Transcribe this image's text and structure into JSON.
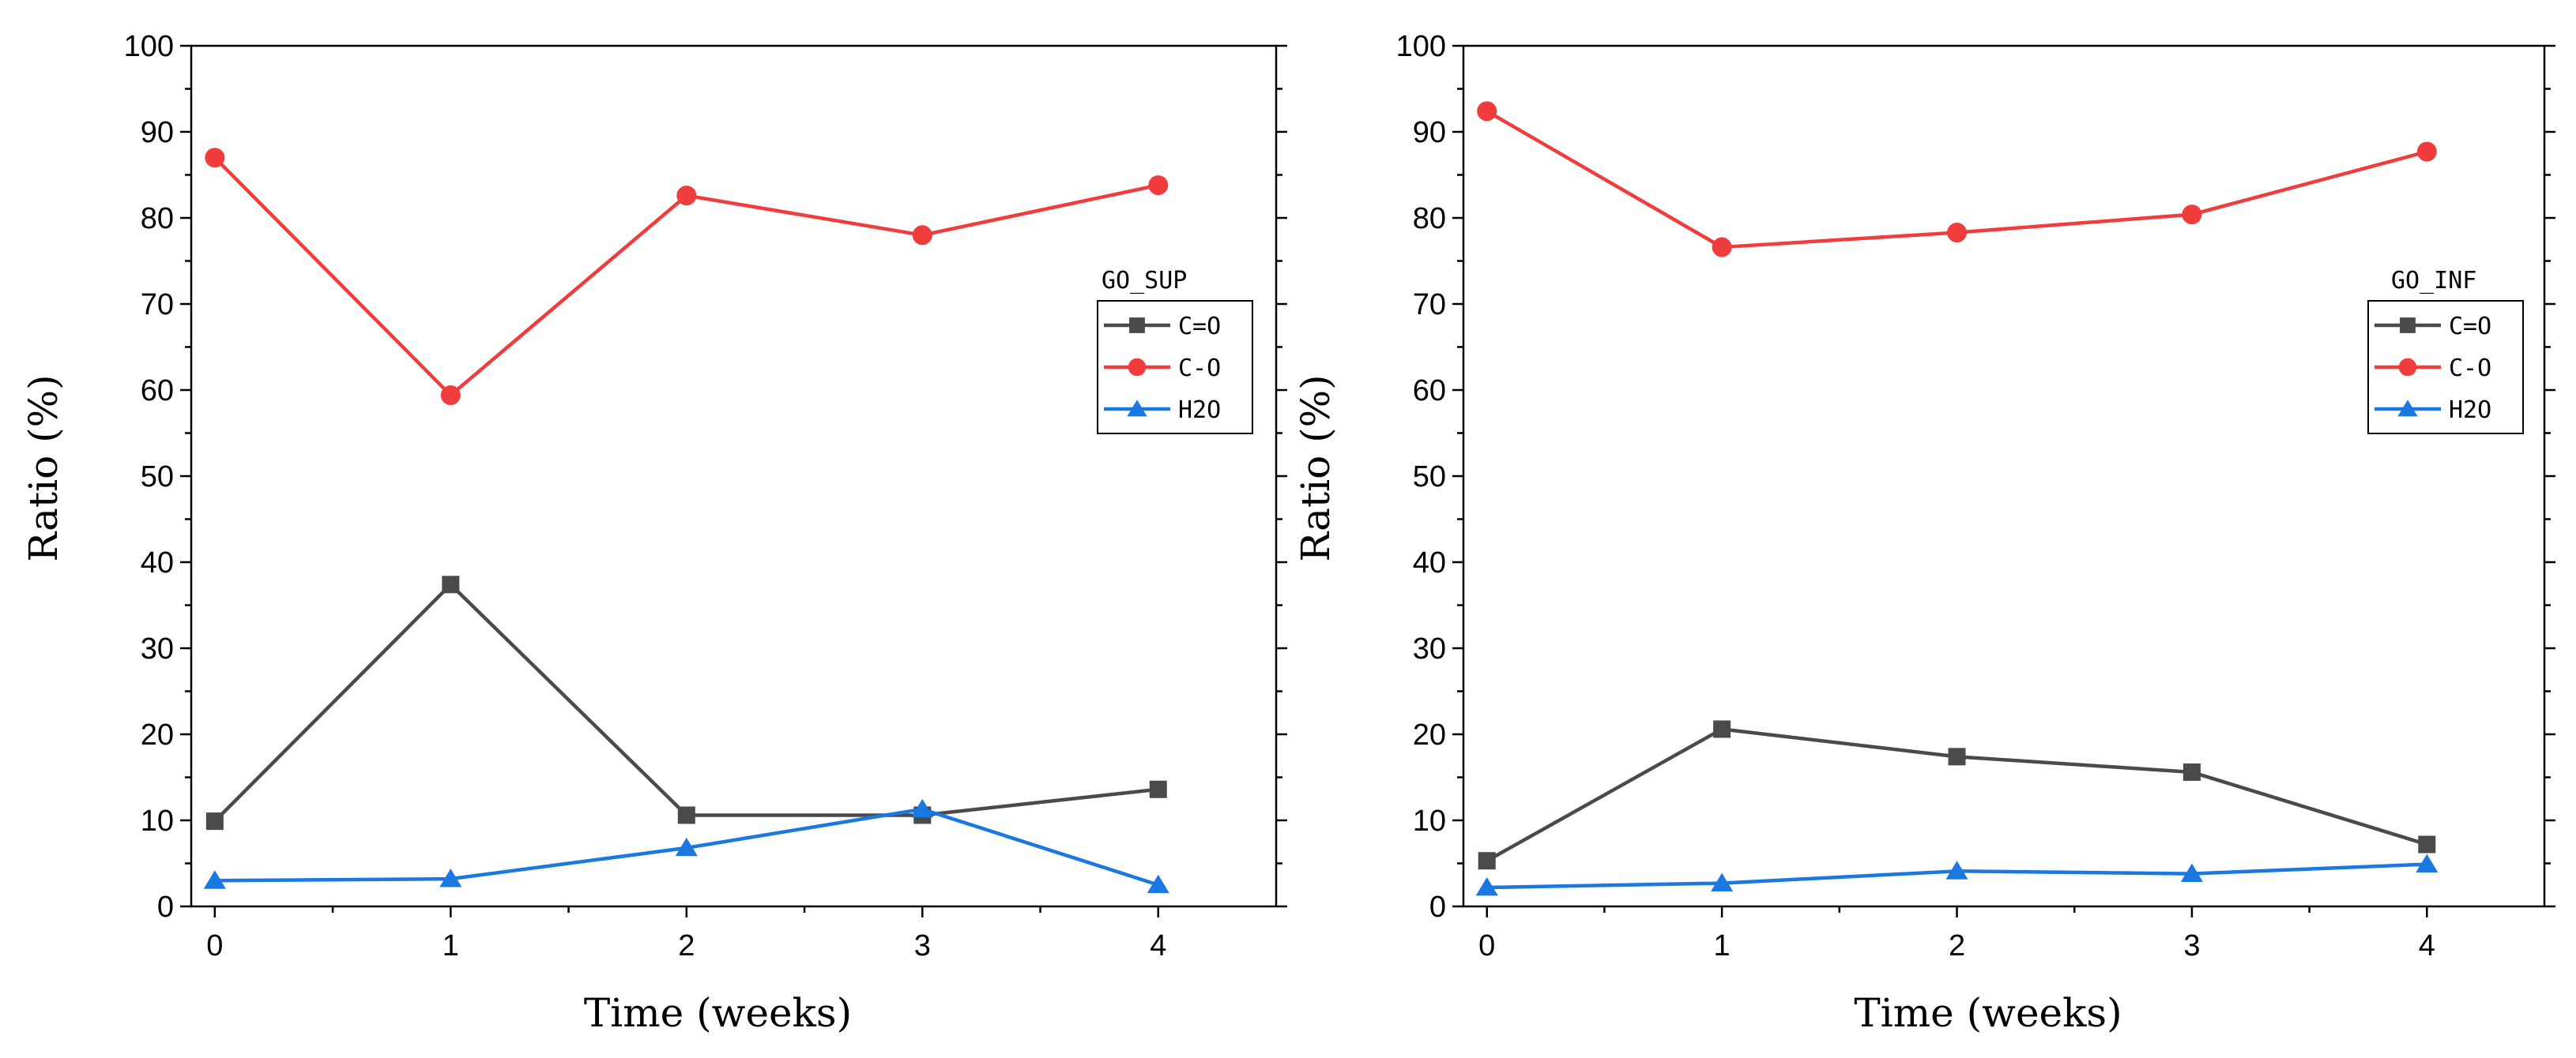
{
  "chart_data": [
    {
      "type": "line",
      "title": "",
      "xlabel": "Time (weeks)",
      "ylabel": "Ratio (%)",
      "xlim": [
        -0.1,
        4.5
      ],
      "ylim": [
        0,
        100
      ],
      "x": [
        0,
        1,
        2,
        3,
        4
      ],
      "xticks": [
        "0",
        "1",
        "2",
        "3",
        "4"
      ],
      "yticks": [
        "0",
        "10",
        "20",
        "30",
        "40",
        "50",
        "60",
        "70",
        "80",
        "90",
        "100"
      ],
      "legend": {
        "title": "GO_SUP",
        "placement": "right"
      },
      "series": [
        {
          "name": "C=O",
          "color": "#4a4a4a",
          "marker": "square",
          "values": [
            9.9,
            37.4,
            10.6,
            10.6,
            13.6
          ]
        },
        {
          "name": "C-O",
          "color": "#f03c3c",
          "marker": "circle",
          "values": [
            87.0,
            59.4,
            82.6,
            78.0,
            83.8
          ]
        },
        {
          "name": "H2O",
          "color": "#1a78e0",
          "marker": "triangle",
          "values": [
            3.0,
            3.2,
            6.8,
            11.3,
            2.5
          ]
        }
      ]
    },
    {
      "type": "line",
      "title": "",
      "xlabel": "Time (weeks)",
      "ylabel": "Ratio (%)",
      "xlim": [
        -0.1,
        4.5
      ],
      "ylim": [
        0,
        100
      ],
      "x": [
        0,
        1,
        2,
        3,
        4
      ],
      "xticks": [
        "0",
        "1",
        "2",
        "3",
        "4"
      ],
      "yticks": [
        "0",
        "10",
        "20",
        "30",
        "40",
        "50",
        "60",
        "70",
        "80",
        "90",
        "100"
      ],
      "legend": {
        "title": "GO_INF",
        "placement": "right"
      },
      "series": [
        {
          "name": "C=O",
          "color": "#4a4a4a",
          "marker": "square",
          "values": [
            5.3,
            20.6,
            17.4,
            15.6,
            7.2
          ]
        },
        {
          "name": "C-O",
          "color": "#f03c3c",
          "marker": "circle",
          "values": [
            92.4,
            76.6,
            78.3,
            80.4,
            87.7
          ]
        },
        {
          "name": "H2O",
          "color": "#1a78e0",
          "marker": "triangle",
          "values": [
            2.2,
            2.7,
            4.1,
            3.8,
            4.9
          ]
        }
      ]
    }
  ]
}
